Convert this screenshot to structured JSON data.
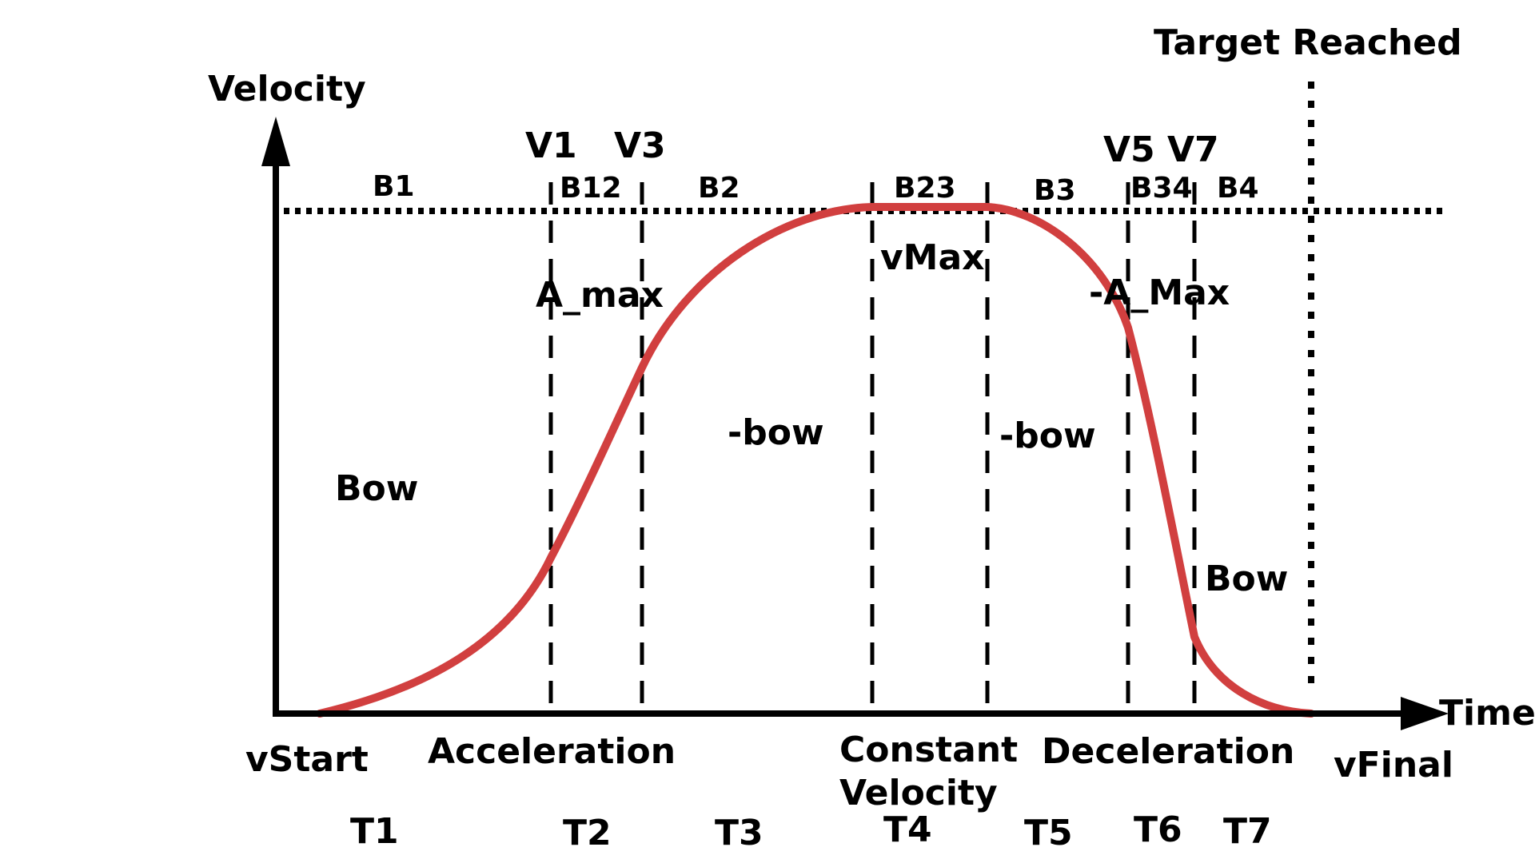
{
  "axes": {
    "y_label": "Velocity",
    "x_label": "Time"
  },
  "target_label": "Target Reached",
  "vertical_labels": [
    "V1",
    "V3",
    "V5 V7"
  ],
  "band_labels": [
    "B1",
    "B12",
    "B2",
    "B23",
    "B3",
    "B34",
    "B4"
  ],
  "region_labels": {
    "a_max": "A_max",
    "neg_a_max": "-A_Max",
    "v_max": "vMax",
    "bow_start": "Bow",
    "neg_bow_1": "-bow",
    "neg_bow_2": "-bow",
    "bow_end": "Bow"
  },
  "phase_labels": {
    "v_start": "vStart",
    "acceleration": "Acceleration",
    "constant_line1": "Constant",
    "constant_line2": "Velocity",
    "deceleration": "Deceleration",
    "v_final": "vFinal"
  },
  "time_labels": [
    "T1",
    "T2",
    "T3",
    "T4",
    "T5",
    "T6",
    "T7"
  ],
  "colors": {
    "curve": "#d13f3f",
    "axis": "#000000",
    "text": "#000000"
  }
}
